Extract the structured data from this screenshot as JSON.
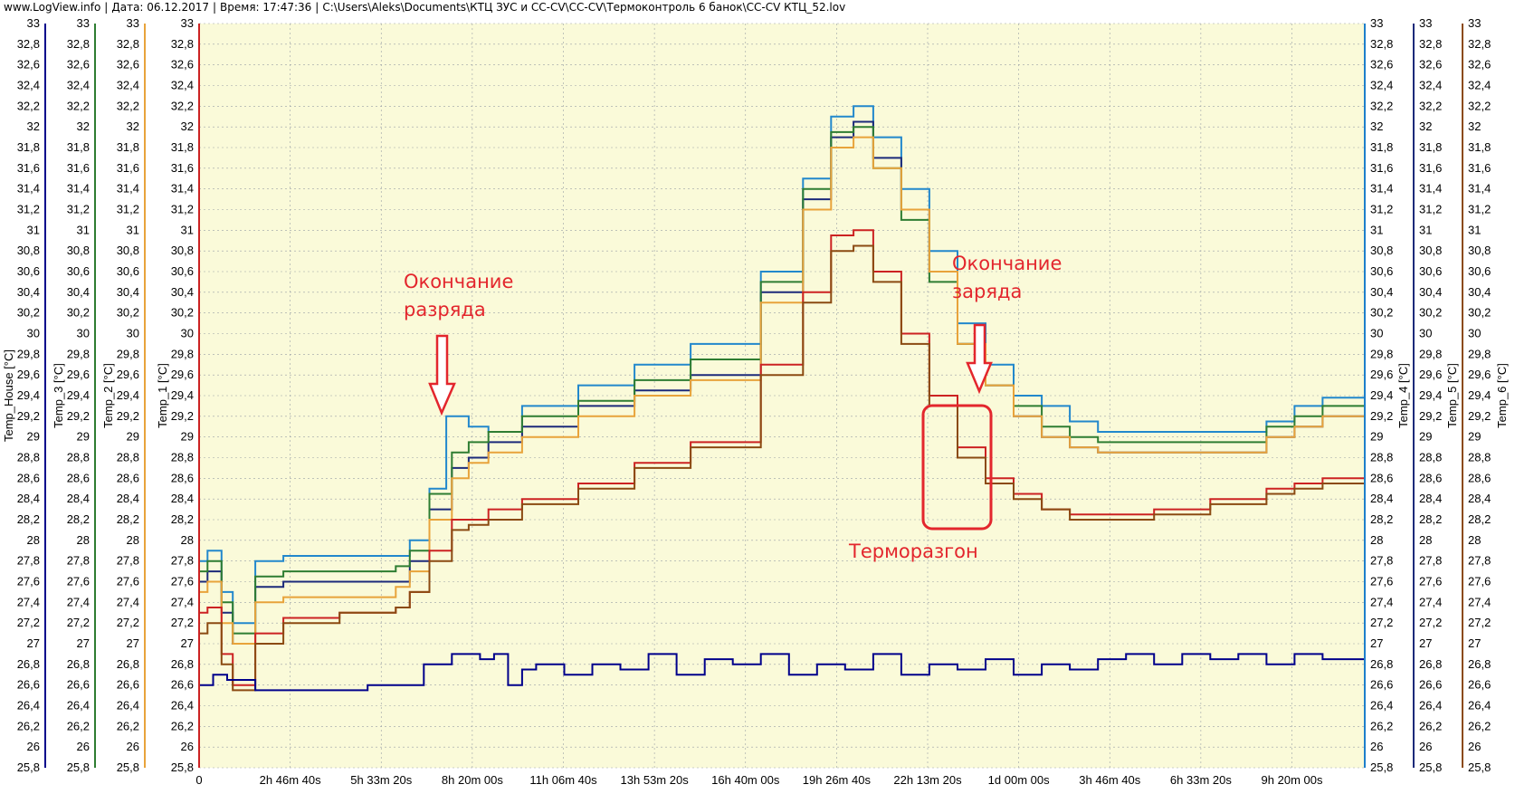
{
  "title_bar": {
    "site": "www.LogView.info",
    "date": "Дата: 06.12.2017",
    "time": "Время: 17:47:36",
    "path": "C:\\Users\\Aleks\\Documents\\КТЦ ЗУС и CC-CV\\CC-CV\\Термоконтроль 6 банок\\CC-CV КТЦ_52.lov",
    "separator": "|"
  },
  "chart_data": {
    "type": "line",
    "background": "#fafad9",
    "grid": true,
    "ylim": [
      25.8,
      33
    ],
    "yticks": [
      "33",
      "32,8",
      "32,6",
      "32,4",
      "32,2",
      "32",
      "31,8",
      "31,6",
      "31,4",
      "31,2",
      "31",
      "30,8",
      "30,6",
      "30,4",
      "30,2",
      "30",
      "29,8",
      "29,6",
      "29,4",
      "29,2",
      "29",
      "28,8",
      "28,6",
      "28,4",
      "28,2",
      "28",
      "27,8",
      "27,6",
      "27,4",
      "27,2",
      "27",
      "26,8",
      "26,6",
      "26,4",
      "26,2",
      "26",
      "25,8"
    ],
    "xtick_labels": [
      "0",
      "2h 46m 40s",
      "5h 33m 20s",
      "8h 20m 00s",
      "11h 06m 40s",
      "13h 53m 20s",
      "16h 40m 00s",
      "19h 26m 40s",
      "22h 13m 20s",
      "1d 00m 00s",
      "3h 46m 40s",
      "6h 33m 20s",
      "9h 20m 00s"
    ],
    "left_axes": [
      {
        "label": "Temp_House [°C]",
        "color": "#00008b"
      },
      {
        "label": "Temp_3 [°C]",
        "color": "#2e7d32"
      },
      {
        "label": "Temp_2 [°C]",
        "color": "#e8a33b"
      },
      {
        "label": "Temp_1 [°C]",
        "color": "#cc2222"
      }
    ],
    "right_axes": [
      {
        "label": "Temp_4 [°C]",
        "color": "#1e7fcb"
      },
      {
        "label": "Temp_5 [°C]",
        "color": "#1c2a7a"
      },
      {
        "label": "Temp_6 [°C]",
        "color": "#8b4a12"
      }
    ],
    "x_max_hours": 41.5,
    "series": [
      {
        "name": "Temp_4",
        "color": "#2288cc",
        "points": [
          [
            0,
            27.8
          ],
          [
            0.3,
            27.9
          ],
          [
            0.8,
            27.5
          ],
          [
            1.2,
            27.2
          ],
          [
            2,
            27.8
          ],
          [
            3,
            27.85
          ],
          [
            5,
            27.85
          ],
          [
            7,
            27.85
          ],
          [
            7.5,
            28.0
          ],
          [
            8.2,
            28.5
          ],
          [
            8.8,
            29.2
          ],
          [
            9.6,
            29.1
          ],
          [
            10.3,
            29.05
          ],
          [
            11.5,
            29.3
          ],
          [
            13.5,
            29.5
          ],
          [
            15.5,
            29.7
          ],
          [
            17.5,
            29.9
          ],
          [
            20,
            30.6
          ],
          [
            21.5,
            31.5
          ],
          [
            22.5,
            32.1
          ],
          [
            23.3,
            32.2
          ],
          [
            24,
            31.9
          ],
          [
            25,
            31.4
          ],
          [
            26,
            30.8
          ],
          [
            27,
            30.1
          ],
          [
            28,
            29.7
          ],
          [
            29,
            29.4
          ],
          [
            30,
            29.3
          ],
          [
            31,
            29.15
          ],
          [
            32,
            29.05
          ],
          [
            34,
            29.05
          ],
          [
            36,
            29.05
          ],
          [
            38,
            29.15
          ],
          [
            39,
            29.3
          ],
          [
            40,
            29.38
          ],
          [
            41.5,
            29.3
          ]
        ]
      },
      {
        "name": "Temp_5",
        "color": "#1c2a7a",
        "points": [
          [
            0,
            27.6
          ],
          [
            0.3,
            27.7
          ],
          [
            0.8,
            27.3
          ],
          [
            1.2,
            27.0
          ],
          [
            2,
            27.55
          ],
          [
            3,
            27.6
          ],
          [
            5,
            27.6
          ],
          [
            7,
            27.6
          ],
          [
            7.5,
            27.8
          ],
          [
            8.2,
            28.3
          ],
          [
            9,
            28.7
          ],
          [
            9.6,
            28.8
          ],
          [
            10.3,
            28.95
          ],
          [
            11.5,
            29.1
          ],
          [
            13.5,
            29.3
          ],
          [
            15.5,
            29.45
          ],
          [
            17.5,
            29.6
          ],
          [
            20,
            30.4
          ],
          [
            21.5,
            31.3
          ],
          [
            22.5,
            31.9
          ],
          [
            23.3,
            32.05
          ],
          [
            24,
            31.7
          ],
          [
            25,
            31.2
          ],
          [
            26,
            30.6
          ],
          [
            27,
            29.9
          ],
          [
            28,
            29.5
          ],
          [
            29,
            29.2
          ],
          [
            30,
            29.0
          ],
          [
            31,
            28.9
          ],
          [
            32,
            28.85
          ],
          [
            34,
            28.85
          ],
          [
            36,
            28.85
          ],
          [
            38,
            29.0
          ],
          [
            39,
            29.1
          ],
          [
            40,
            29.2
          ],
          [
            41.5,
            29.1
          ]
        ]
      },
      {
        "name": "Temp_3",
        "color": "#2e7d32",
        "points": [
          [
            0,
            27.7
          ],
          [
            0.3,
            27.8
          ],
          [
            0.8,
            27.4
          ],
          [
            1.2,
            27.1
          ],
          [
            2,
            27.65
          ],
          [
            3,
            27.7
          ],
          [
            5,
            27.7
          ],
          [
            7,
            27.75
          ],
          [
            7.5,
            27.9
          ],
          [
            8.2,
            28.45
          ],
          [
            9,
            28.85
          ],
          [
            9.6,
            28.95
          ],
          [
            10.3,
            29.05
          ],
          [
            11.5,
            29.2
          ],
          [
            13.5,
            29.35
          ],
          [
            15.5,
            29.55
          ],
          [
            17.5,
            29.75
          ],
          [
            20,
            30.5
          ],
          [
            21.5,
            31.4
          ],
          [
            22.5,
            31.95
          ],
          [
            23.3,
            32.0
          ],
          [
            24,
            31.6
          ],
          [
            25,
            31.1
          ],
          [
            26,
            30.5
          ],
          [
            27,
            29.9
          ],
          [
            28,
            29.5
          ],
          [
            29,
            29.3
          ],
          [
            30,
            29.1
          ],
          [
            31,
            29.0
          ],
          [
            32,
            28.95
          ],
          [
            34,
            28.95
          ],
          [
            36,
            28.95
          ],
          [
            38,
            29.1
          ],
          [
            39,
            29.2
          ],
          [
            40,
            29.3
          ],
          [
            41.5,
            29.2
          ]
        ]
      },
      {
        "name": "Temp_2",
        "color": "#e8a33b",
        "points": [
          [
            0,
            27.5
          ],
          [
            0.3,
            27.6
          ],
          [
            0.8,
            27.2
          ],
          [
            1.2,
            27.0
          ],
          [
            2,
            27.4
          ],
          [
            3,
            27.45
          ],
          [
            5,
            27.45
          ],
          [
            7,
            27.55
          ],
          [
            7.5,
            27.7
          ],
          [
            8.2,
            28.2
          ],
          [
            9,
            28.6
          ],
          [
            9.6,
            28.75
          ],
          [
            10.3,
            28.85
          ],
          [
            11.5,
            29.0
          ],
          [
            13.5,
            29.2
          ],
          [
            15.5,
            29.4
          ],
          [
            17.5,
            29.55
          ],
          [
            20,
            30.3
          ],
          [
            21.5,
            31.2
          ],
          [
            22.5,
            31.8
          ],
          [
            23.3,
            31.9
          ],
          [
            24,
            31.6
          ],
          [
            25,
            31.2
          ],
          [
            26,
            30.6
          ],
          [
            27,
            29.9
          ],
          [
            28,
            29.5
          ],
          [
            29,
            29.2
          ],
          [
            30,
            29.0
          ],
          [
            31,
            28.9
          ],
          [
            32,
            28.85
          ],
          [
            34,
            28.85
          ],
          [
            36,
            28.85
          ],
          [
            38,
            29.0
          ],
          [
            39,
            29.1
          ],
          [
            40,
            29.2
          ],
          [
            41.5,
            29.1
          ]
        ]
      },
      {
        "name": "Temp_1",
        "color": "#cc2222",
        "points": [
          [
            0,
            27.3
          ],
          [
            0.3,
            27.35
          ],
          [
            0.8,
            26.9
          ],
          [
            1.2,
            26.6
          ],
          [
            2,
            27.1
          ],
          [
            3,
            27.25
          ],
          [
            5,
            27.3
          ],
          [
            7,
            27.35
          ],
          [
            7.5,
            27.5
          ],
          [
            8.2,
            27.9
          ],
          [
            9,
            28.2
          ],
          [
            9.6,
            28.2
          ],
          [
            10.3,
            28.3
          ],
          [
            11.5,
            28.4
          ],
          [
            13.5,
            28.55
          ],
          [
            15.5,
            28.75
          ],
          [
            17.5,
            28.95
          ],
          [
            20,
            29.7
          ],
          [
            21.5,
            30.4
          ],
          [
            22.5,
            30.95
          ],
          [
            23.3,
            31.0
          ],
          [
            24,
            30.6
          ],
          [
            25,
            30.0
          ],
          [
            26,
            29.4
          ],
          [
            27,
            28.9
          ],
          [
            28,
            28.6
          ],
          [
            29,
            28.45
          ],
          [
            30,
            28.3
          ],
          [
            31,
            28.25
          ],
          [
            32,
            28.25
          ],
          [
            34,
            28.3
          ],
          [
            36,
            28.4
          ],
          [
            38,
            28.5
          ],
          [
            39,
            28.55
          ],
          [
            40,
            28.6
          ],
          [
            41.5,
            28.5
          ]
        ]
      },
      {
        "name": "Temp_6",
        "color": "#8b4a12",
        "points": [
          [
            0,
            27.1
          ],
          [
            0.3,
            27.2
          ],
          [
            0.8,
            26.8
          ],
          [
            1.2,
            26.55
          ],
          [
            2,
            27.0
          ],
          [
            3,
            27.2
          ],
          [
            5,
            27.3
          ],
          [
            7,
            27.35
          ],
          [
            7.5,
            27.5
          ],
          [
            8.2,
            27.8
          ],
          [
            9,
            28.1
          ],
          [
            9.6,
            28.15
          ],
          [
            10.3,
            28.2
          ],
          [
            11.5,
            28.35
          ],
          [
            13.5,
            28.5
          ],
          [
            15.5,
            28.7
          ],
          [
            17.5,
            28.9
          ],
          [
            20,
            29.6
          ],
          [
            21.5,
            30.3
          ],
          [
            22.5,
            30.8
          ],
          [
            23.3,
            30.85
          ],
          [
            24,
            30.5
          ],
          [
            25,
            29.9
          ],
          [
            26,
            29.3
          ],
          [
            27,
            28.8
          ],
          [
            28,
            28.55
          ],
          [
            29,
            28.4
          ],
          [
            30,
            28.3
          ],
          [
            31,
            28.2
          ],
          [
            32,
            28.2
          ],
          [
            34,
            28.25
          ],
          [
            36,
            28.35
          ],
          [
            38,
            28.45
          ],
          [
            39,
            28.5
          ],
          [
            40,
            28.55
          ],
          [
            41.5,
            28.45
          ]
        ]
      },
      {
        "name": "Temp_House",
        "color": "#00008b",
        "points": [
          [
            0,
            26.6
          ],
          [
            0.5,
            26.7
          ],
          [
            1,
            26.65
          ],
          [
            2,
            26.55
          ],
          [
            4,
            26.55
          ],
          [
            6,
            26.6
          ],
          [
            8,
            26.8
          ],
          [
            9,
            26.9
          ],
          [
            10,
            26.85
          ],
          [
            10.5,
            26.9
          ],
          [
            11,
            26.6
          ],
          [
            11.5,
            26.75
          ],
          [
            12,
            26.8
          ],
          [
            13,
            26.7
          ],
          [
            14,
            26.8
          ],
          [
            15,
            26.75
          ],
          [
            16,
            26.9
          ],
          [
            17,
            26.7
          ],
          [
            18,
            26.85
          ],
          [
            19,
            26.8
          ],
          [
            20,
            26.9
          ],
          [
            21,
            26.7
          ],
          [
            22,
            26.8
          ],
          [
            23,
            26.75
          ],
          [
            24,
            26.9
          ],
          [
            25,
            26.7
          ],
          [
            26,
            26.8
          ],
          [
            27,
            26.75
          ],
          [
            28,
            26.85
          ],
          [
            29,
            26.7
          ],
          [
            30,
            26.8
          ],
          [
            31,
            26.75
          ],
          [
            32,
            26.85
          ],
          [
            33,
            26.9
          ],
          [
            34,
            26.8
          ],
          [
            35,
            26.9
          ],
          [
            36,
            26.85
          ],
          [
            37,
            26.9
          ],
          [
            38,
            26.8
          ],
          [
            39,
            26.9
          ],
          [
            40,
            26.85
          ],
          [
            41.5,
            26.8
          ]
        ]
      }
    ],
    "annotations": [
      {
        "lines": [
          "Окончание",
          "разряда"
        ]
      },
      {
        "lines": [
          "Окончание",
          "заряда"
        ]
      },
      {
        "lines": [
          "Терморазгон"
        ]
      }
    ]
  }
}
